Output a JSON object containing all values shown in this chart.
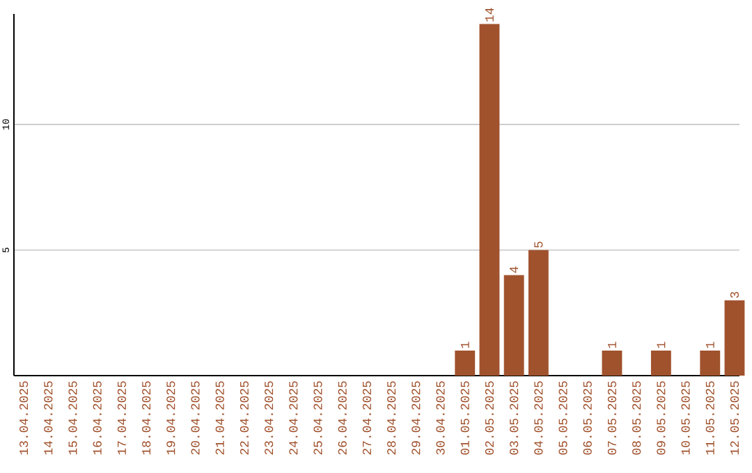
{
  "chart_data": {
    "type": "bar",
    "categories": [
      "13.04.2025",
      "14.04.2025",
      "15.04.2025",
      "16.04.2025",
      "17.04.2025",
      "18.04.2025",
      "19.04.2025",
      "20.04.2025",
      "21.04.2025",
      "22.04.2025",
      "23.04.2025",
      "24.04.2025",
      "25.04.2025",
      "26.04.2025",
      "27.04.2025",
      "28.04.2025",
      "29.04.2025",
      "30.04.2025",
      "01.05.2025",
      "02.05.2025",
      "03.05.2025",
      "04.05.2025",
      "05.05.2025",
      "06.05.2025",
      "07.05.2025",
      "08.05.2025",
      "09.05.2025",
      "10.05.2025",
      "11.05.2025",
      "12.05.2025"
    ],
    "values": [
      0,
      0,
      0,
      0,
      0,
      0,
      0,
      0,
      0,
      0,
      0,
      0,
      0,
      0,
      0,
      0,
      0,
      0,
      1,
      14,
      4,
      5,
      0,
      0,
      1,
      0,
      1,
      0,
      1,
      3
    ],
    "value_labels": [
      null,
      null,
      null,
      null,
      null,
      null,
      null,
      null,
      null,
      null,
      null,
      null,
      null,
      null,
      null,
      null,
      null,
      null,
      "1",
      "14",
      "4",
      "5",
      null,
      null,
      "1",
      null,
      "1",
      null,
      "1",
      "3"
    ],
    "color": "#a0522d",
    "ylim": [
      0,
      14.4
    ],
    "yticks": [
      5,
      10
    ],
    "grid": "y"
  }
}
